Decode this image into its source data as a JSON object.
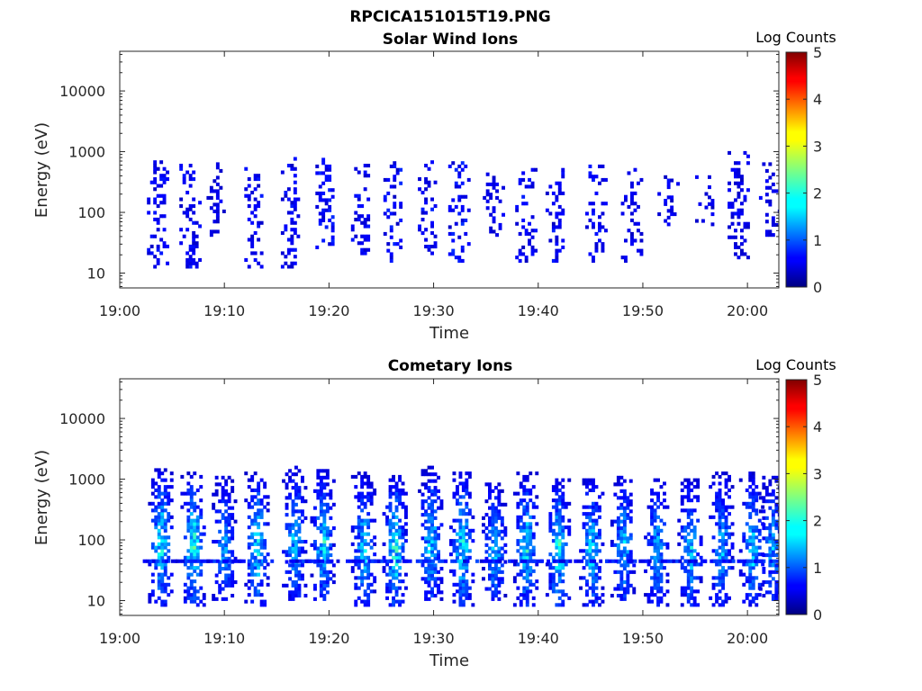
{
  "figure_title": "RPCICA151015T19.PNG",
  "colors": {
    "axis": "#262626",
    "background": "#ffffff"
  },
  "chart_data": [
    {
      "type": "heatmap",
      "title": "Solar Wind Ions",
      "xlabel": "Time",
      "ylabel": "Energy (eV)",
      "x_ticks": [
        "19:00",
        "19:10",
        "19:20",
        "19:30",
        "19:40",
        "19:50",
        "20:00"
      ],
      "y_ticks": [
        "10",
        "100",
        "1000",
        "10000"
      ],
      "y_scale": "log",
      "xlim": [
        "19:00",
        "20:03"
      ],
      "ylim": [
        5.7,
        45000
      ],
      "colorbar": {
        "label": "Log Counts",
        "ticks": [
          "0",
          "1",
          "2",
          "3",
          "4",
          "5"
        ],
        "range": [
          0,
          5
        ],
        "colormap": "jet"
      },
      "grid": false,
      "peak_log_counts": 0.5,
      "bursts": [
        {
          "t": 3.5,
          "e_lo": 12,
          "e_hi": 650,
          "c": 0.3
        },
        {
          "t": 6.6,
          "e_lo": 12,
          "e_hi": 650,
          "c": 0.3
        },
        {
          "t": 9.2,
          "e_lo": 40,
          "e_hi": 650,
          "c": 0.2
        },
        {
          "t": 12.8,
          "e_lo": 12,
          "e_hi": 600,
          "c": 0.3
        },
        {
          "t": 16.3,
          "e_lo": 12,
          "e_hi": 800,
          "c": 0.3
        },
        {
          "t": 19.6,
          "e_lo": 25,
          "e_hi": 700,
          "c": 0.4
        },
        {
          "t": 23.0,
          "e_lo": 20,
          "e_hi": 600,
          "c": 0.3
        },
        {
          "t": 26.1,
          "e_lo": 15,
          "e_hi": 650,
          "c": 0.4
        },
        {
          "t": 29.4,
          "e_lo": 20,
          "e_hi": 650,
          "c": 0.3
        },
        {
          "t": 32.3,
          "e_lo": 15,
          "e_hi": 650,
          "c": 0.4
        },
        {
          "t": 35.6,
          "e_lo": 40,
          "e_hi": 400,
          "c": 0.2
        },
        {
          "t": 38.7,
          "e_lo": 15,
          "e_hi": 500,
          "c": 0.3
        },
        {
          "t": 41.6,
          "e_lo": 15,
          "e_hi": 500,
          "c": 0.3
        },
        {
          "t": 45.4,
          "e_lo": 15,
          "e_hi": 600,
          "c": 0.3
        },
        {
          "t": 48.8,
          "e_lo": 15,
          "e_hi": 500,
          "c": 0.2
        },
        {
          "t": 52.3,
          "e_lo": 60,
          "e_hi": 400,
          "c": 0.2
        },
        {
          "t": 55.9,
          "e_lo": 60,
          "e_hi": 400,
          "c": 0.2
        },
        {
          "t": 59.0,
          "e_lo": 15,
          "e_hi": 900,
          "c": 0.2
        },
        {
          "t": 62.0,
          "e_lo": 40,
          "e_hi": 600,
          "c": 0.2
        }
      ]
    },
    {
      "type": "heatmap",
      "title": "Cometary Ions",
      "xlabel": "Time",
      "ylabel": "Energy (eV)",
      "x_ticks": [
        "19:00",
        "19:10",
        "19:20",
        "19:30",
        "19:40",
        "19:50",
        "20:00"
      ],
      "y_ticks": [
        "10",
        "100",
        "1000",
        "10000"
      ],
      "y_scale": "log",
      "xlim": [
        "19:00",
        "20:03"
      ],
      "ylim": [
        5.7,
        45000
      ],
      "colorbar": {
        "label": "Log Counts",
        "ticks": [
          "0",
          "1",
          "2",
          "3",
          "4",
          "5"
        ],
        "range": [
          0,
          5
        ],
        "colormap": "jet"
      },
      "grid": false,
      "peak_log_counts": 2.0,
      "bursts": [
        {
          "t": 3.8,
          "e_lo": 8,
          "e_hi": 1500,
          "c": 1.7
        },
        {
          "t": 6.9,
          "e_lo": 8,
          "e_hi": 1300,
          "c": 1.8
        },
        {
          "t": 9.9,
          "e_lo": 10,
          "e_hi": 1000,
          "c": 1.2
        },
        {
          "t": 13.0,
          "e_lo": 8,
          "e_hi": 1200,
          "c": 1.6
        },
        {
          "t": 16.6,
          "e_lo": 10,
          "e_hi": 1500,
          "c": 1.4
        },
        {
          "t": 19.3,
          "e_lo": 10,
          "e_hi": 1400,
          "c": 1.6
        },
        {
          "t": 23.2,
          "e_lo": 8,
          "e_hi": 1200,
          "c": 1.5
        },
        {
          "t": 26.2,
          "e_lo": 8,
          "e_hi": 1100,
          "c": 1.8
        },
        {
          "t": 29.6,
          "e_lo": 10,
          "e_hi": 1500,
          "c": 1.5
        },
        {
          "t": 32.6,
          "e_lo": 8,
          "e_hi": 1300,
          "c": 1.7
        },
        {
          "t": 35.7,
          "e_lo": 10,
          "e_hi": 800,
          "c": 1.3
        },
        {
          "t": 38.7,
          "e_lo": 8,
          "e_hi": 1200,
          "c": 1.6
        },
        {
          "t": 41.8,
          "e_lo": 8,
          "e_hi": 1000,
          "c": 1.8
        },
        {
          "t": 45.0,
          "e_lo": 8,
          "e_hi": 1000,
          "c": 1.5
        },
        {
          "t": 48.0,
          "e_lo": 10,
          "e_hi": 1100,
          "c": 1.4
        },
        {
          "t": 51.2,
          "e_lo": 8,
          "e_hi": 1000,
          "c": 1.3
        },
        {
          "t": 54.4,
          "e_lo": 8,
          "e_hi": 1000,
          "c": 1.4
        },
        {
          "t": 57.4,
          "e_lo": 8,
          "e_hi": 1200,
          "c": 1.3
        },
        {
          "t": 60.3,
          "e_lo": 8,
          "e_hi": 1200,
          "c": 1.5
        },
        {
          "t": 62.2,
          "e_lo": 10,
          "e_hi": 1000,
          "c": 1.2
        }
      ]
    }
  ]
}
